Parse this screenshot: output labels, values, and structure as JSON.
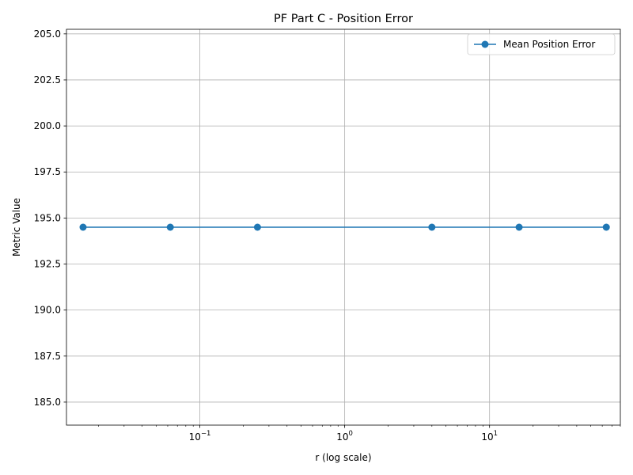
{
  "chart_data": {
    "type": "line",
    "title": "PF Part C - Position Error",
    "xlabel": "r (log scale)",
    "ylabel": "Metric Value",
    "x_scale": "log",
    "xlim": [
      0.012,
      80
    ],
    "ylim": [
      183.75,
      205.25
    ],
    "grid": true,
    "legend_position": "top-right",
    "x_ticks": [
      {
        "value": 0.1,
        "base": "10",
        "exp": "−1"
      },
      {
        "value": 1,
        "base": "10",
        "exp": "0"
      },
      {
        "value": 10,
        "base": "10",
        "exp": "1"
      }
    ],
    "y_ticks": [
      185.0,
      187.5,
      190.0,
      192.5,
      195.0,
      197.5,
      200.0,
      202.5,
      205.0
    ],
    "y_tick_labels": [
      "185.0",
      "187.5",
      "190.0",
      "192.5",
      "195.0",
      "197.5",
      "200.0",
      "202.5",
      "205.0"
    ],
    "series": [
      {
        "name": "Mean Position Error",
        "color": "#1f77b4",
        "marker": "circle",
        "x": [
          0.015625,
          0.0625,
          0.25,
          4,
          16,
          64
        ],
        "y": [
          194.5,
          194.5,
          194.5,
          194.5,
          194.5,
          194.5
        ]
      }
    ]
  }
}
